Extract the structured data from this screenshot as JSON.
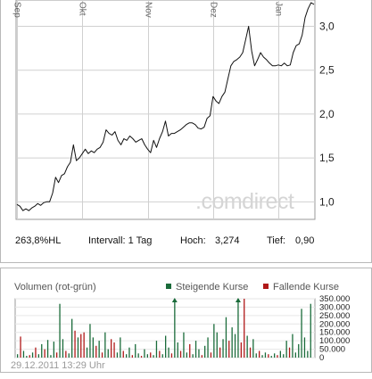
{
  "chart_data": [
    {
      "type": "line",
      "x_ticks": [
        "Sep",
        "Okt",
        "Nov",
        "Dez",
        "Jan"
      ],
      "y_ticks": [
        "1,0",
        "1,5",
        "2,0",
        "2,5",
        "3,0"
      ],
      "ylim": [
        0.8,
        3.3
      ],
      "grid": true,
      "series": [
        {
          "values": [
            0.97,
            0.95,
            0.9,
            0.92,
            0.9,
            0.93,
            0.95,
            0.98,
            0.96,
            0.99,
            1.0,
            1.0,
            1.1,
            1.28,
            1.22,
            1.3,
            1.32,
            1.4,
            1.45,
            1.65,
            1.47,
            1.5,
            1.55,
            1.6,
            1.55,
            1.58,
            1.56,
            1.6,
            1.62,
            1.68,
            1.82,
            1.78,
            1.76,
            1.8,
            1.7,
            1.65,
            1.72,
            1.7,
            1.75,
            1.72,
            1.68,
            1.7,
            1.72,
            1.65,
            1.6,
            1.56,
            1.7,
            1.62,
            1.72,
            1.8,
            1.92,
            1.75,
            1.78,
            1.78,
            1.8,
            1.82,
            1.85,
            1.88,
            1.9,
            1.9,
            1.88,
            1.84,
            1.83,
            1.85,
            1.95,
            1.98,
            2.2,
            2.15,
            2.12,
            2.2,
            2.25,
            2.4,
            2.55,
            2.6,
            2.62,
            2.65,
            2.7,
            2.85,
            3.0,
            2.72,
            2.55,
            2.62,
            2.7,
            2.65,
            2.62,
            2.58,
            2.55,
            2.55,
            2.56,
            2.55,
            2.58,
            2.55,
            2.56,
            2.7,
            2.78,
            2.8,
            2.9,
            3.1,
            3.2,
            3.27,
            3.25
          ]
        }
      ],
      "watermark": ".comdirect"
    },
    {
      "type": "bar",
      "title": "Volumen (rot-grün)",
      "legend": [
        {
          "label": "Steigende Kurse",
          "color": "#1a6b3a"
        },
        {
          "label": "Fallende Kurse",
          "color": "#b01818"
        }
      ],
      "y_ticks": [
        "350.000",
        "300.000",
        "250.000",
        "200.000",
        "150.000",
        "100.000",
        "50.000",
        "0"
      ],
      "ylim": [
        0,
        350000
      ],
      "bars": [
        {
          "value": 20000,
          "dir": "up"
        },
        {
          "value": 125000,
          "dir": "down"
        },
        {
          "value": 40000,
          "dir": "up"
        },
        {
          "value": 10000,
          "dir": "up"
        },
        {
          "value": 15000,
          "dir": "down"
        },
        {
          "value": 30000,
          "dir": "up"
        },
        {
          "value": 60000,
          "dir": "down"
        },
        {
          "value": 20000,
          "dir": "up"
        },
        {
          "value": 80000,
          "dir": "up"
        },
        {
          "value": 50000,
          "dir": "down"
        },
        {
          "value": 105000,
          "dir": "up"
        },
        {
          "value": 15000,
          "dir": "up"
        },
        {
          "value": 95000,
          "dir": "up"
        },
        {
          "value": 30000,
          "dir": "down"
        },
        {
          "value": 320000,
          "dir": "up"
        },
        {
          "value": 110000,
          "dir": "up"
        },
        {
          "value": 40000,
          "dir": "down"
        },
        {
          "value": 25000,
          "dir": "up"
        },
        {
          "value": 230000,
          "dir": "up"
        },
        {
          "value": 160000,
          "dir": "down"
        },
        {
          "value": 120000,
          "dir": "up"
        },
        {
          "value": 140000,
          "dir": "down"
        },
        {
          "value": 150000,
          "dir": "down"
        },
        {
          "value": 60000,
          "dir": "up"
        },
        {
          "value": 200000,
          "dir": "up"
        },
        {
          "value": 120000,
          "dir": "up"
        },
        {
          "value": 70000,
          "dir": "down"
        },
        {
          "value": 100000,
          "dir": "up"
        },
        {
          "value": 30000,
          "dir": "down"
        },
        {
          "value": 150000,
          "dir": "up"
        },
        {
          "value": 50000,
          "dir": "up"
        },
        {
          "value": 110000,
          "dir": "down"
        },
        {
          "value": 90000,
          "dir": "down"
        },
        {
          "value": 30000,
          "dir": "up"
        },
        {
          "value": 120000,
          "dir": "up"
        },
        {
          "value": 40000,
          "dir": "down"
        },
        {
          "value": 20000,
          "dir": "up"
        },
        {
          "value": 60000,
          "dir": "up"
        },
        {
          "value": 15000,
          "dir": "down"
        },
        {
          "value": 80000,
          "dir": "up"
        },
        {
          "value": 25000,
          "dir": "up"
        },
        {
          "value": 10000,
          "dir": "down"
        },
        {
          "value": 50000,
          "dir": "up"
        },
        {
          "value": 20000,
          "dir": "up"
        },
        {
          "value": 30000,
          "dir": "down"
        },
        {
          "value": 15000,
          "dir": "up"
        },
        {
          "value": 100000,
          "dir": "up"
        },
        {
          "value": 40000,
          "dir": "down"
        },
        {
          "value": 20000,
          "dir": "up"
        },
        {
          "value": 130000,
          "dir": "up"
        },
        {
          "value": 60000,
          "dir": "up"
        },
        {
          "value": 25000,
          "dir": "down"
        },
        {
          "value": 350000,
          "dir": "up",
          "arrow": true
        },
        {
          "value": 90000,
          "dir": "up"
        },
        {
          "value": 40000,
          "dir": "down"
        },
        {
          "value": 150000,
          "dir": "up"
        },
        {
          "value": 30000,
          "dir": "up"
        },
        {
          "value": 80000,
          "dir": "down"
        },
        {
          "value": 20000,
          "dir": "up"
        },
        {
          "value": 100000,
          "dir": "up"
        },
        {
          "value": 50000,
          "dir": "up"
        },
        {
          "value": 15000,
          "dir": "down"
        },
        {
          "value": 70000,
          "dir": "up"
        },
        {
          "value": 120000,
          "dir": "up"
        },
        {
          "value": 30000,
          "dir": "down"
        },
        {
          "value": 200000,
          "dir": "up"
        },
        {
          "value": 150000,
          "dir": "up"
        },
        {
          "value": 60000,
          "dir": "down"
        },
        {
          "value": 110000,
          "dir": "up"
        },
        {
          "value": 240000,
          "dir": "up"
        },
        {
          "value": 100000,
          "dir": "down"
        },
        {
          "value": 180000,
          "dir": "up"
        },
        {
          "value": 140000,
          "dir": "up"
        },
        {
          "value": 350000,
          "dir": "up",
          "arrow": true
        },
        {
          "value": 90000,
          "dir": "down"
        },
        {
          "value": 350000,
          "dir": "down"
        },
        {
          "value": 130000,
          "dir": "up"
        },
        {
          "value": 60000,
          "dir": "down"
        },
        {
          "value": 110000,
          "dir": "up"
        },
        {
          "value": 25000,
          "dir": "up"
        },
        {
          "value": 40000,
          "dir": "down"
        },
        {
          "value": 15000,
          "dir": "up"
        },
        {
          "value": 30000,
          "dir": "up"
        },
        {
          "value": 20000,
          "dir": "down"
        },
        {
          "value": 10000,
          "dir": "up"
        },
        {
          "value": 25000,
          "dir": "up"
        },
        {
          "value": 15000,
          "dir": "down"
        },
        {
          "value": 40000,
          "dir": "up"
        },
        {
          "value": 20000,
          "dir": "up"
        },
        {
          "value": 100000,
          "dir": "up"
        },
        {
          "value": 60000,
          "dir": "down"
        },
        {
          "value": 140000,
          "dir": "up"
        },
        {
          "value": 30000,
          "dir": "up"
        },
        {
          "value": 80000,
          "dir": "up"
        },
        {
          "value": 290000,
          "dir": "up"
        },
        {
          "value": 120000,
          "dir": "up"
        },
        {
          "value": 40000,
          "dir": "up"
        },
        {
          "value": 320000,
          "dir": "up"
        }
      ]
    }
  ],
  "stats": {
    "performance": "263,8%HL",
    "interval": "Intervall: 1 Tag",
    "high_label": "Hoch:",
    "high_value": "3,274",
    "low_label": "Tief:",
    "low_value": "0,90"
  },
  "timestamp": "29.12.2011 13:29 Uhr"
}
